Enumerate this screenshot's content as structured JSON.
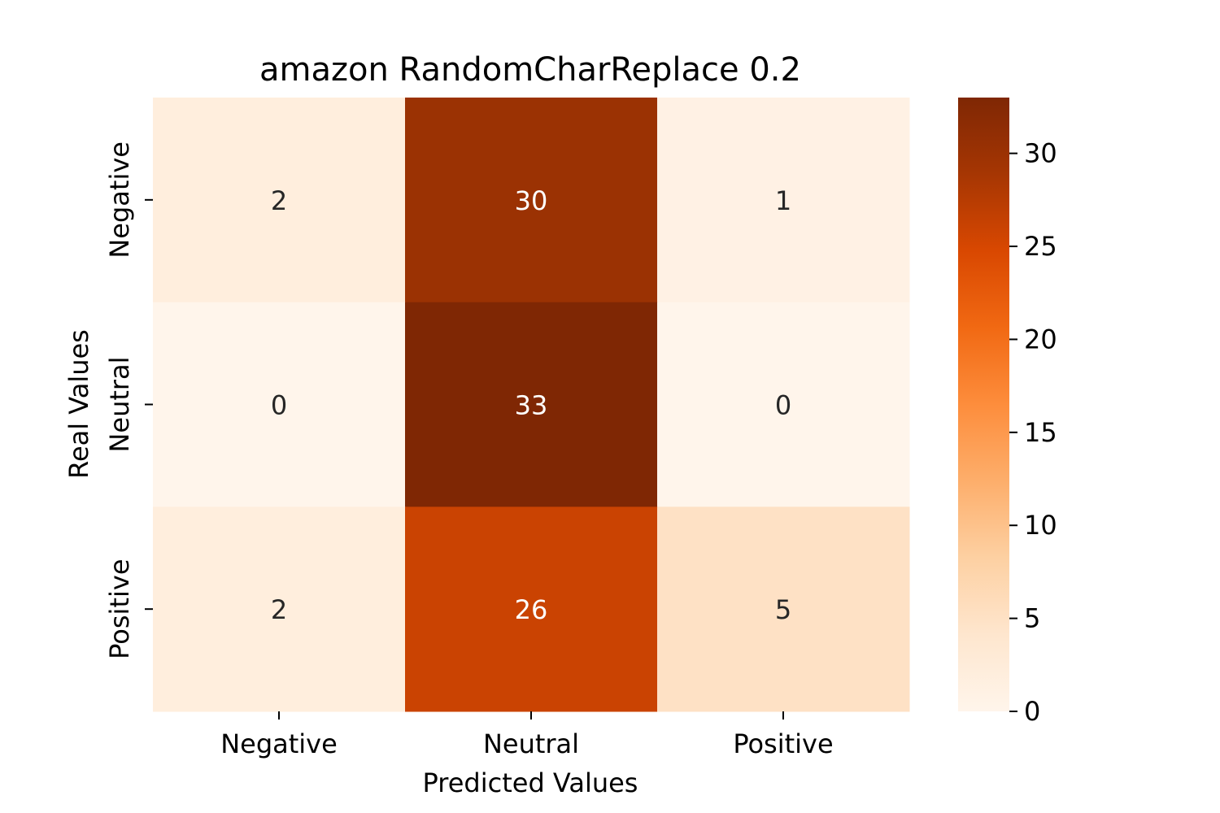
{
  "chart_data": {
    "type": "heatmap",
    "title": "amazon RandomCharReplace 0.2",
    "xlabel": "Predicted Values",
    "ylabel": "Real Values",
    "x_categories": [
      "Negative",
      "Neutral",
      "Positive"
    ],
    "y_categories": [
      "Negative",
      "Neutral",
      "Positive"
    ],
    "values": [
      [
        2,
        30,
        1
      ],
      [
        0,
        33,
        0
      ],
      [
        2,
        26,
        5
      ]
    ],
    "colormap": "Oranges",
    "value_range": [
      0,
      33
    ],
    "colorbar_ticks": [
      0,
      5,
      10,
      15,
      20,
      25,
      30
    ],
    "grid": false
  }
}
